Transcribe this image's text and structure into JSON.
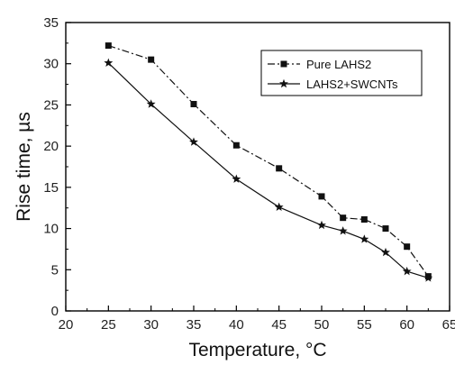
{
  "chart_data": {
    "type": "line",
    "title": "",
    "xlabel": "Temperature, °C",
    "ylabel": "Rise time, µs",
    "xlim": [
      20,
      65
    ],
    "ylim": [
      0,
      35
    ],
    "xticks": [
      "20",
      "25",
      "30",
      "35",
      "40",
      "45",
      "50",
      "55",
      "60",
      "65"
    ],
    "yticks": [
      "0",
      "5",
      "10",
      "15",
      "20",
      "25",
      "30",
      "35"
    ],
    "grid": false,
    "legend_position": "top-right",
    "series": [
      {
        "name": "Pure LAHS2",
        "marker": "square",
        "line_style": "dash-dot",
        "x": [
          25,
          30,
          35,
          40,
          45,
          50,
          52.5,
          55,
          57.5,
          60,
          62.5
        ],
        "y": [
          32.2,
          30.5,
          25.1,
          20.1,
          17.3,
          13.9,
          11.3,
          11.1,
          10.0,
          7.8,
          4.2
        ]
      },
      {
        "name": "LAHS2+SWCNTs",
        "marker": "star",
        "line_style": "solid",
        "x": [
          25,
          30,
          35,
          40,
          45,
          50,
          52.5,
          55,
          57.5,
          60,
          62.5
        ],
        "y": [
          30.1,
          25.1,
          20.5,
          16.0,
          12.6,
          10.4,
          9.7,
          8.7,
          7.1,
          4.8,
          4.0
        ]
      }
    ],
    "colors": {
      "line": "#111111",
      "axis": "#000000"
    }
  }
}
